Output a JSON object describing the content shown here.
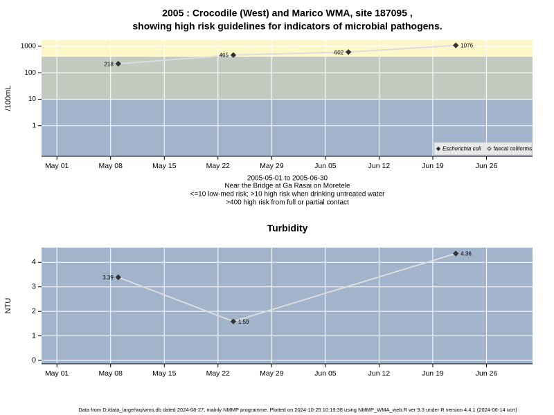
{
  "chart_data": [
    {
      "type": "line",
      "title": [
        "2005 : Crocodile (West) and Marico WMA, site 187095 ,",
        "showing high risk guidelines for indicators of microbial pathogens."
      ],
      "ylabel": "/100mL",
      "log_y": true,
      "x": [
        "May 09",
        "May 24",
        "Jun 08",
        "Jun 22"
      ],
      "xlim": [
        "Apr 29",
        "Jul 02"
      ],
      "xticks": [
        "May 01",
        "May 08",
        "May 15",
        "May 22",
        "May 29",
        "Jun 05",
        "Jun 12",
        "Jun 19",
        "Jun 26"
      ],
      "ylim": [
        0.07,
        1700
      ],
      "yticks": [
        1,
        10,
        100,
        1000
      ],
      "thresholds": [
        10,
        400
      ],
      "band_colors": [
        "#a2b3cc",
        "#c3cbc0",
        "#fdf6c8"
      ],
      "grid": true,
      "line_color": "#dcdcdc",
      "legend": "lower right",
      "series": [
        {
          "name": "Escherichia coli",
          "color": "#333333",
          "marker": "filled",
          "values": [
            218,
            465,
            602,
            1076
          ]
        },
        {
          "name": "faecal coliforms",
          "color": "#333333",
          "marker": "open",
          "values": [
            null,
            null,
            null,
            null
          ]
        }
      ],
      "notes": [
        "2005-05-01 to 2005-06-30",
        "Near the Bridge at Ga Rasai on Moretele",
        "<=10 low-med risk; >10 high risk when drinking untreated water",
        ">400 high risk from full or partial contact"
      ]
    },
    {
      "type": "line",
      "title": "Turbidity",
      "ylabel": "NTU",
      "log_y": false,
      "x": [
        "May 09",
        "May 24",
        "Jun 22"
      ],
      "xlim": [
        "Apr 29",
        "Jul 02"
      ],
      "xticks": [
        "May 01",
        "May 08",
        "May 15",
        "May 22",
        "May 29",
        "Jun 05",
        "Jun 12",
        "Jun 19",
        "Jun 26"
      ],
      "ylim": [
        -0.14,
        4.6
      ],
      "yticks": [
        0,
        1,
        2,
        3,
        4
      ],
      "background": "#a2b3cc",
      "grid": true,
      "line_color": "#dcdcdc",
      "color": "#333333",
      "values": [
        3.39,
        1.59,
        4.36
      ]
    }
  ],
  "footer": "Data from D:/data_large/wq/wms.db dated 2024-08-27, mainly NMMP programme. Plotted on 2024-10-25 10:19:38 using NMMP_WMA_web.R ver 9.3 under R version 4.4.1 (2024-06-14 ucrt)"
}
